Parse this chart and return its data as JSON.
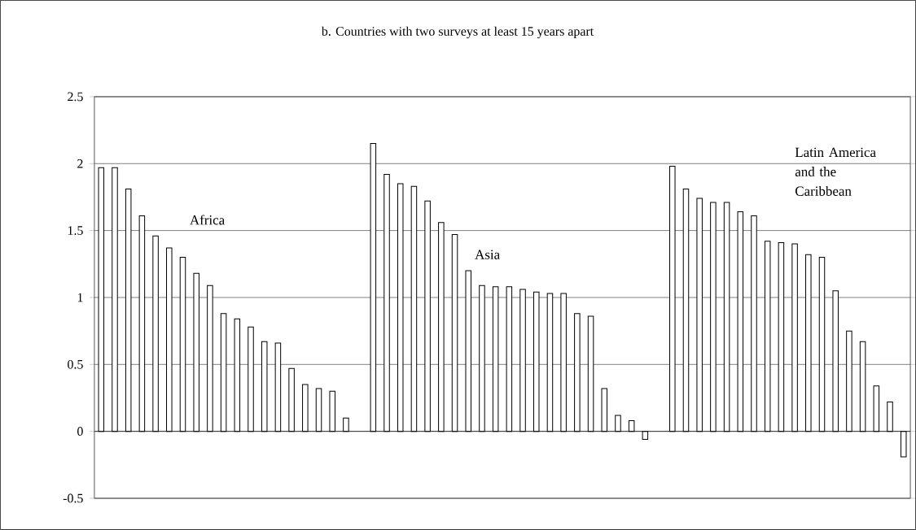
{
  "chart_data": {
    "type": "bar",
    "title": "b. Countries with two surveys at least 15 years apart",
    "categories": [
      null,
      null,
      null,
      null,
      null,
      null,
      null,
      null,
      null,
      null,
      null,
      null,
      null,
      null,
      null,
      null,
      null,
      null,
      null,
      null,
      null,
      null,
      null,
      null,
      null,
      null,
      null,
      null,
      null,
      null,
      null,
      null,
      null,
      null,
      null,
      null,
      null,
      null,
      null,
      null,
      null,
      null,
      null,
      null,
      null,
      null,
      null,
      null,
      null,
      null,
      null,
      null,
      null,
      null,
      null,
      null,
      null,
      null,
      null,
      null
    ],
    "values": [
      1.97,
      1.97,
      1.81,
      1.61,
      1.46,
      1.37,
      1.3,
      1.18,
      1.09,
      0.88,
      0.84,
      0.78,
      0.67,
      0.66,
      0.47,
      0.35,
      0.32,
      0.3,
      0.1,
      null,
      2.15,
      1.92,
      1.85,
      1.83,
      1.72,
      1.56,
      1.47,
      1.2,
      1.09,
      1.08,
      1.08,
      1.06,
      1.04,
      1.03,
      1.03,
      0.88,
      0.86,
      0.32,
      0.12,
      0.08,
      -0.06,
      null,
      1.98,
      1.81,
      1.74,
      1.71,
      1.71,
      1.64,
      1.61,
      1.42,
      1.41,
      1.4,
      1.32,
      1.3,
      1.05,
      0.75,
      0.67,
      0.34,
      0.22,
      -0.19
    ],
    "color": "#ffffff",
    "ylim": [
      -0.5,
      2.5
    ],
    "yticks": [
      -0.5,
      0,
      0.5,
      1,
      1.5,
      2,
      2.5
    ],
    "grid": "y",
    "annotations": [
      "Africa",
      "Asia",
      "Latin America and the Caribbean"
    ]
  }
}
